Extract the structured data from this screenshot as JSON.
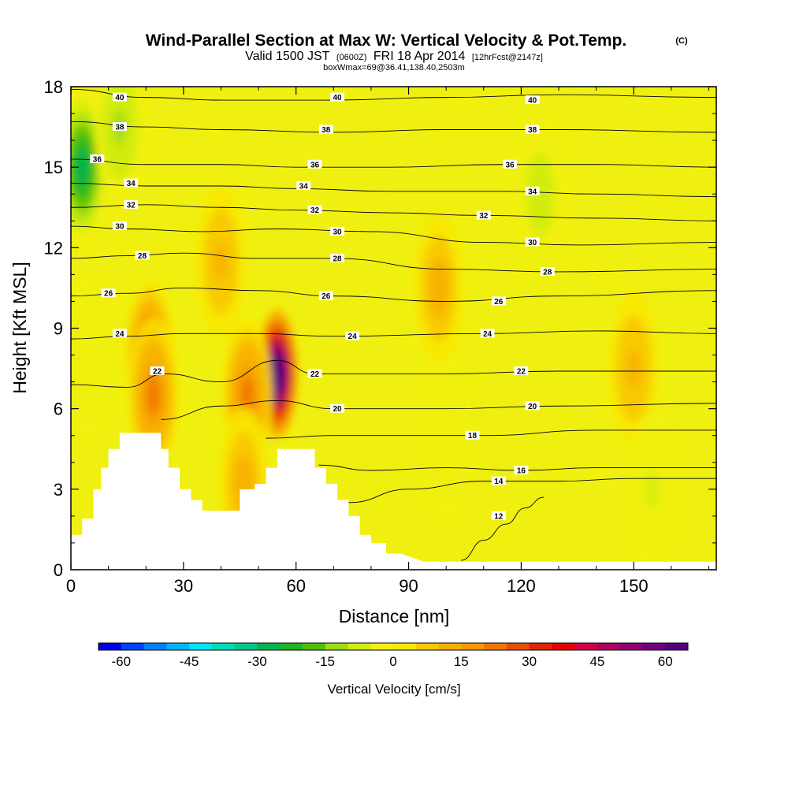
{
  "title": {
    "main": "Wind-Parallel Section at Max W: Vertical Velocity & Pot.Temp.",
    "copyright": "(C)",
    "valid_prefix": "Valid 1500 JST",
    "valid_utc": "(0600Z)",
    "valid_date": "FRI 18 Apr 2014",
    "forecast": "[12hrFcst@2147z]",
    "box_info": "boxWmax=69@36.41,138.40,2503m"
  },
  "colors": {
    "background_field": "#f0f010",
    "terrain": "#ffffff",
    "contour_line": "#000000"
  },
  "chart_data": {
    "type": "heatmap",
    "xlabel": "Distance [nm]",
    "ylabel": "Height [Kft MSL]",
    "xlim": [
      0,
      172
    ],
    "ylim": [
      0,
      18
    ],
    "xticks": [
      0,
      30,
      60,
      90,
      120,
      150
    ],
    "yticks": [
      0,
      3,
      6,
      9,
      12,
      15,
      18
    ],
    "terrain": {
      "x": [
        0,
        0,
        3,
        3,
        6,
        6,
        8,
        8,
        10,
        10,
        13,
        13,
        16,
        16,
        24,
        24,
        26,
        26,
        29,
        29,
        32,
        32,
        35,
        35,
        39,
        39,
        45,
        45,
        49,
        49,
        52,
        52,
        55,
        55,
        65,
        65,
        68,
        68,
        71,
        71,
        74,
        74,
        77,
        77,
        80,
        80,
        84,
        84,
        88,
        88,
        94,
        94,
        100,
        100,
        172
      ],
      "y": [
        1.3,
        1.3,
        1.3,
        1.9,
        1.9,
        3.0,
        3.0,
        3.8,
        3.8,
        4.5,
        4.5,
        5.1,
        5.1,
        5.1,
        5.1,
        4.5,
        4.5,
        3.8,
        3.8,
        3.0,
        3.0,
        2.6,
        2.6,
        2.2,
        2.2,
        2.2,
        2.2,
        3.0,
        3.0,
        3.2,
        3.2,
        3.8,
        3.8,
        4.5,
        4.5,
        3.8,
        3.8,
        3.2,
        3.2,
        2.6,
        2.6,
        2.0,
        2.0,
        1.3,
        1.3,
        1.0,
        1.0,
        0.6,
        0.6,
        0.6,
        0.3,
        0.3,
        0.3,
        0.3,
        0.3
      ]
    },
    "vertical_velocity_field": [
      {
        "feature": "updraft core",
        "x": 55,
        "y": 7.3,
        "w_cm_s": 69
      },
      {
        "feature": "updraft",
        "x": 21,
        "y": 8.0,
        "w_cm_s": 25
      },
      {
        "feature": "updraft",
        "x": 22,
        "y": 6.5,
        "w_cm_s": 20
      },
      {
        "feature": "updraft",
        "x": 47,
        "y": 6.5,
        "w_cm_s": 20
      },
      {
        "feature": "updraft",
        "x": 46,
        "y": 3.2,
        "w_cm_s": 12
      },
      {
        "feature": "updraft",
        "x": 98,
        "y": 10.5,
        "w_cm_s": 12
      },
      {
        "feature": "updraft",
        "x": 40,
        "y": 11.5,
        "w_cm_s": 10
      },
      {
        "feature": "updraft",
        "x": 150,
        "y": 7.5,
        "w_cm_s": 10
      },
      {
        "feature": "downdraft",
        "x": 3,
        "y": 15.0,
        "w_cm_s": -28
      },
      {
        "feature": "downdraft",
        "x": 13,
        "y": 16.5,
        "w_cm_s": -12
      },
      {
        "feature": "downdraft",
        "x": 125,
        "y": 14.0,
        "w_cm_s": -8
      },
      {
        "feature": "downdraft",
        "x": 5,
        "y": 8.0,
        "w_cm_s": -5
      },
      {
        "feature": "downdraft",
        "x": 155,
        "y": 3.0,
        "w_cm_s": -6
      },
      {
        "feature": "downdraft",
        "x": 100,
        "y": 5.0,
        "w_cm_s": -4
      }
    ],
    "pot_temp_contours": [
      {
        "theta": 12,
        "x": [
          104,
          110,
          116,
          121,
          126
        ],
        "y": [
          0.35,
          1.1,
          1.7,
          2.3,
          2.7
        ]
      },
      {
        "theta": 14,
        "x": [
          74,
          90,
          110,
          130,
          150,
          172
        ],
        "y": [
          2.5,
          3.0,
          3.3,
          3.3,
          3.4,
          3.4
        ]
      },
      {
        "theta": 16,
        "x": [
          66,
          80,
          100,
          120,
          140,
          172
        ],
        "y": [
          3.9,
          3.7,
          3.8,
          3.7,
          3.8,
          3.8
        ]
      },
      {
        "theta": 18,
        "x": [
          52,
          70,
          90,
          110,
          140,
          172
        ],
        "y": [
          4.9,
          5.0,
          5.0,
          5.0,
          5.2,
          5.2
        ]
      },
      {
        "theta": 20,
        "x": [
          24,
          40,
          55,
          70,
          100,
          130,
          172
        ],
        "y": [
          5.6,
          6.1,
          6.3,
          6.0,
          6.0,
          6.1,
          6.2
        ]
      },
      {
        "theta": 22,
        "x": [
          0,
          15,
          25,
          40,
          55,
          65,
          100,
          130,
          172
        ],
        "y": [
          6.9,
          6.8,
          7.3,
          7.0,
          7.8,
          7.3,
          7.3,
          7.4,
          7.4
        ]
      },
      {
        "theta": 24,
        "x": [
          0,
          15,
          30,
          50,
          70,
          110,
          140,
          172
        ],
        "y": [
          8.6,
          8.7,
          8.8,
          8.8,
          8.7,
          8.8,
          8.9,
          8.8
        ]
      },
      {
        "theta": 26,
        "x": [
          0,
          15,
          30,
          50,
          70,
          100,
          130,
          172
        ],
        "y": [
          10.2,
          10.3,
          10.5,
          10.4,
          10.2,
          10.0,
          10.2,
          10.4
        ]
      },
      {
        "theta": 28,
        "x": [
          0,
          15,
          30,
          50,
          70,
          100,
          130,
          172
        ],
        "y": [
          11.6,
          11.7,
          11.8,
          11.6,
          11.6,
          11.2,
          11.1,
          11.2
        ]
      },
      {
        "theta": 30,
        "x": [
          0,
          15,
          35,
          55,
          80,
          110,
          135,
          172
        ],
        "y": [
          12.8,
          12.7,
          12.6,
          12.7,
          12.6,
          12.2,
          12.1,
          12.2
        ]
      },
      {
        "theta": 32,
        "x": [
          0,
          20,
          40,
          60,
          85,
          110,
          140,
          172
        ],
        "y": [
          13.5,
          13.6,
          13.5,
          13.4,
          13.3,
          13.2,
          13.1,
          13.0
        ]
      },
      {
        "theta": 34,
        "x": [
          0,
          20,
          40,
          60,
          85,
          115,
          140,
          172
        ],
        "y": [
          14.4,
          14.3,
          14.3,
          14.2,
          14.1,
          14.1,
          14.0,
          13.9
        ]
      },
      {
        "theta": 36,
        "x": [
          0,
          20,
          40,
          60,
          85,
          115,
          140,
          172
        ],
        "y": [
          15.3,
          15.1,
          15.1,
          15.0,
          15.0,
          15.1,
          15.1,
          15.0
        ]
      },
      {
        "theta": 38,
        "x": [
          0,
          20,
          40,
          70,
          100,
          130,
          172
        ],
        "y": [
          16.7,
          16.5,
          16.4,
          16.3,
          16.4,
          16.4,
          16.3
        ]
      },
      {
        "theta": 40,
        "x": [
          0,
          20,
          40,
          70,
          100,
          130,
          172
        ],
        "y": [
          17.9,
          17.6,
          17.5,
          17.5,
          17.6,
          17.7,
          17.6
        ]
      }
    ],
    "contour_labels": [
      {
        "text": "40",
        "x": 13,
        "y": 17.6
      },
      {
        "text": "40",
        "x": 71,
        "y": 17.6
      },
      {
        "text": "40",
        "x": 123,
        "y": 17.5
      },
      {
        "text": "38",
        "x": 13,
        "y": 16.5
      },
      {
        "text": "38",
        "x": 68,
        "y": 16.4
      },
      {
        "text": "38",
        "x": 123,
        "y": 16.4
      },
      {
        "text": "36",
        "x": 7,
        "y": 15.3
      },
      {
        "text": "36",
        "x": 65,
        "y": 15.1
      },
      {
        "text": "36",
        "x": 117,
        "y": 15.1
      },
      {
        "text": "34",
        "x": 16,
        "y": 14.4
      },
      {
        "text": "34",
        "x": 62,
        "y": 14.3
      },
      {
        "text": "34",
        "x": 123,
        "y": 14.1
      },
      {
        "text": "32",
        "x": 16,
        "y": 13.6
      },
      {
        "text": "32",
        "x": 65,
        "y": 13.4
      },
      {
        "text": "32",
        "x": 110,
        "y": 13.2
      },
      {
        "text": "30",
        "x": 13,
        "y": 12.8
      },
      {
        "text": "30",
        "x": 71,
        "y": 12.6
      },
      {
        "text": "30",
        "x": 123,
        "y": 12.2
      },
      {
        "text": "28",
        "x": 19,
        "y": 11.7
      },
      {
        "text": "28",
        "x": 71,
        "y": 11.6
      },
      {
        "text": "28",
        "x": 127,
        "y": 11.1
      },
      {
        "text": "26",
        "x": 10,
        "y": 10.3
      },
      {
        "text": "26",
        "x": 68,
        "y": 10.2
      },
      {
        "text": "26",
        "x": 114,
        "y": 10.0
      },
      {
        "text": "24",
        "x": 13,
        "y": 8.8
      },
      {
        "text": "24",
        "x": 75,
        "y": 8.7
      },
      {
        "text": "24",
        "x": 111,
        "y": 8.8
      },
      {
        "text": "22",
        "x": 23,
        "y": 7.4
      },
      {
        "text": "22",
        "x": 65,
        "y": 7.3
      },
      {
        "text": "22",
        "x": 120,
        "y": 7.4
      },
      {
        "text": "20",
        "x": 71,
        "y": 6.0
      },
      {
        "text": "20",
        "x": 123,
        "y": 6.1
      },
      {
        "text": "18",
        "x": 107,
        "y": 5.0
      },
      {
        "text": "16",
        "x": 120,
        "y": 3.7
      },
      {
        "text": "14",
        "x": 114,
        "y": 3.3
      },
      {
        "text": "12",
        "x": 114,
        "y": 2.0
      }
    ]
  },
  "colorbar": {
    "title": "Vertical Velocity [cm/s]",
    "min": -65,
    "max": 65,
    "step": 5,
    "tick_values": [
      -60,
      -45,
      -30,
      -15,
      0,
      15,
      30,
      45,
      60
    ],
    "tick_labels": [
      "-60",
      "-45",
      "-30",
      "-15",
      "0",
      "15",
      "30",
      "45",
      "60"
    ],
    "colors": [
      "#0000e6",
      "#0040ff",
      "#0080ff",
      "#00b4ff",
      "#00e6ff",
      "#00dcb4",
      "#00c88c",
      "#00b450",
      "#20b428",
      "#50c000",
      "#a0dc14",
      "#d0ec10",
      "#f0f010",
      "#f8e800",
      "#f8c800",
      "#f8b000",
      "#f89800",
      "#f07800",
      "#e85000",
      "#e02800",
      "#e80000",
      "#d0004a",
      "#b00060",
      "#900070",
      "#70007c",
      "#500080"
    ]
  }
}
